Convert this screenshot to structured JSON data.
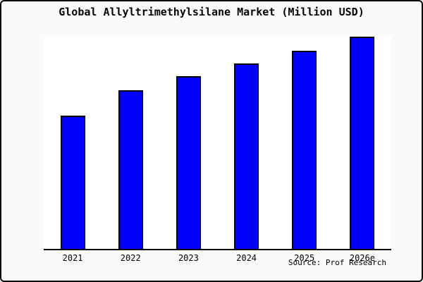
{
  "window": {
    "background": "#fafafa",
    "border_color": "#0a0a0a"
  },
  "header": {
    "title": "Global Allyltrimethylsilane Market (Million USD)"
  },
  "chart_data": {
    "type": "bar",
    "title": "Global Allyltrimethylsilane Market (Million USD)",
    "categories": [
      "2021",
      "2022",
      "2023",
      "2024",
      "2025",
      "2026e"
    ],
    "values": [
      62.8,
      74.8,
      81.4,
      87.4,
      93.4,
      100
    ],
    "values_note": "Relative bar heights as % of tallest bar (2026e); the chart displays no y-axis scale, gridlines or data labels.",
    "xlabel": "",
    "ylabel": "",
    "ylim": [
      0,
      100
    ],
    "grid": false,
    "legend": false,
    "y_axis_visible": false,
    "bar_color": "#0000ff",
    "bar_border_color": "#000000",
    "axis_color": "#000000",
    "plot_background": "#ffffff"
  },
  "footer": {
    "source_label": "Source: Prof Research"
  }
}
